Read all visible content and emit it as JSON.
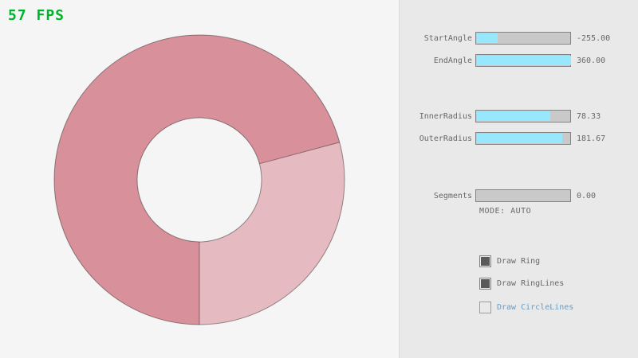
{
  "theme": {
    "bg": "#f5f5f5",
    "panel_bg": "#e9e9e9",
    "panel_border": "#dadada",
    "fps": "#00b32d",
    "text": "#686868",
    "border": "#838383",
    "track": "#c9c9c9",
    "accent": "#97e8ff",
    "check_fill": "#5a5a5a",
    "focus_border": "#5bb2d9",
    "focus_text": "#6c9bbc",
    "ring_single": "#e6bac1",
    "ring_double": "#d8909b",
    "ring_outline": "rgba(0,0,0,0.4)"
  },
  "fps": {
    "label": "57 FPS"
  },
  "ring": {
    "start_angle": -255.0,
    "end_angle": 360.0,
    "inner_radius": 78.33,
    "outer_radius": 181.67,
    "segments": 0.0,
    "mode": "AUTO"
  },
  "panel": {
    "sliders": [
      {
        "label": "StartAngle",
        "value": "-255.00",
        "fill_pct": 21.7
      },
      {
        "label": "EndAngle",
        "value": "360.00",
        "fill_pct": 100
      },
      {
        "label": "InnerRadius",
        "value": "78.33",
        "fill_pct": 78.3
      },
      {
        "label": "OuterRadius",
        "value": "181.67",
        "fill_pct": 90.8
      },
      {
        "label": "Segments",
        "value": "0.00",
        "fill_pct": 0
      }
    ],
    "mode_text": "MODE: AUTO",
    "checkboxes": [
      {
        "label": "Draw Ring",
        "checked": true,
        "focused": false
      },
      {
        "label": "Draw RingLines",
        "checked": true,
        "focused": false
      },
      {
        "label": "Draw CircleLines",
        "checked": false,
        "focused": true
      }
    ]
  }
}
